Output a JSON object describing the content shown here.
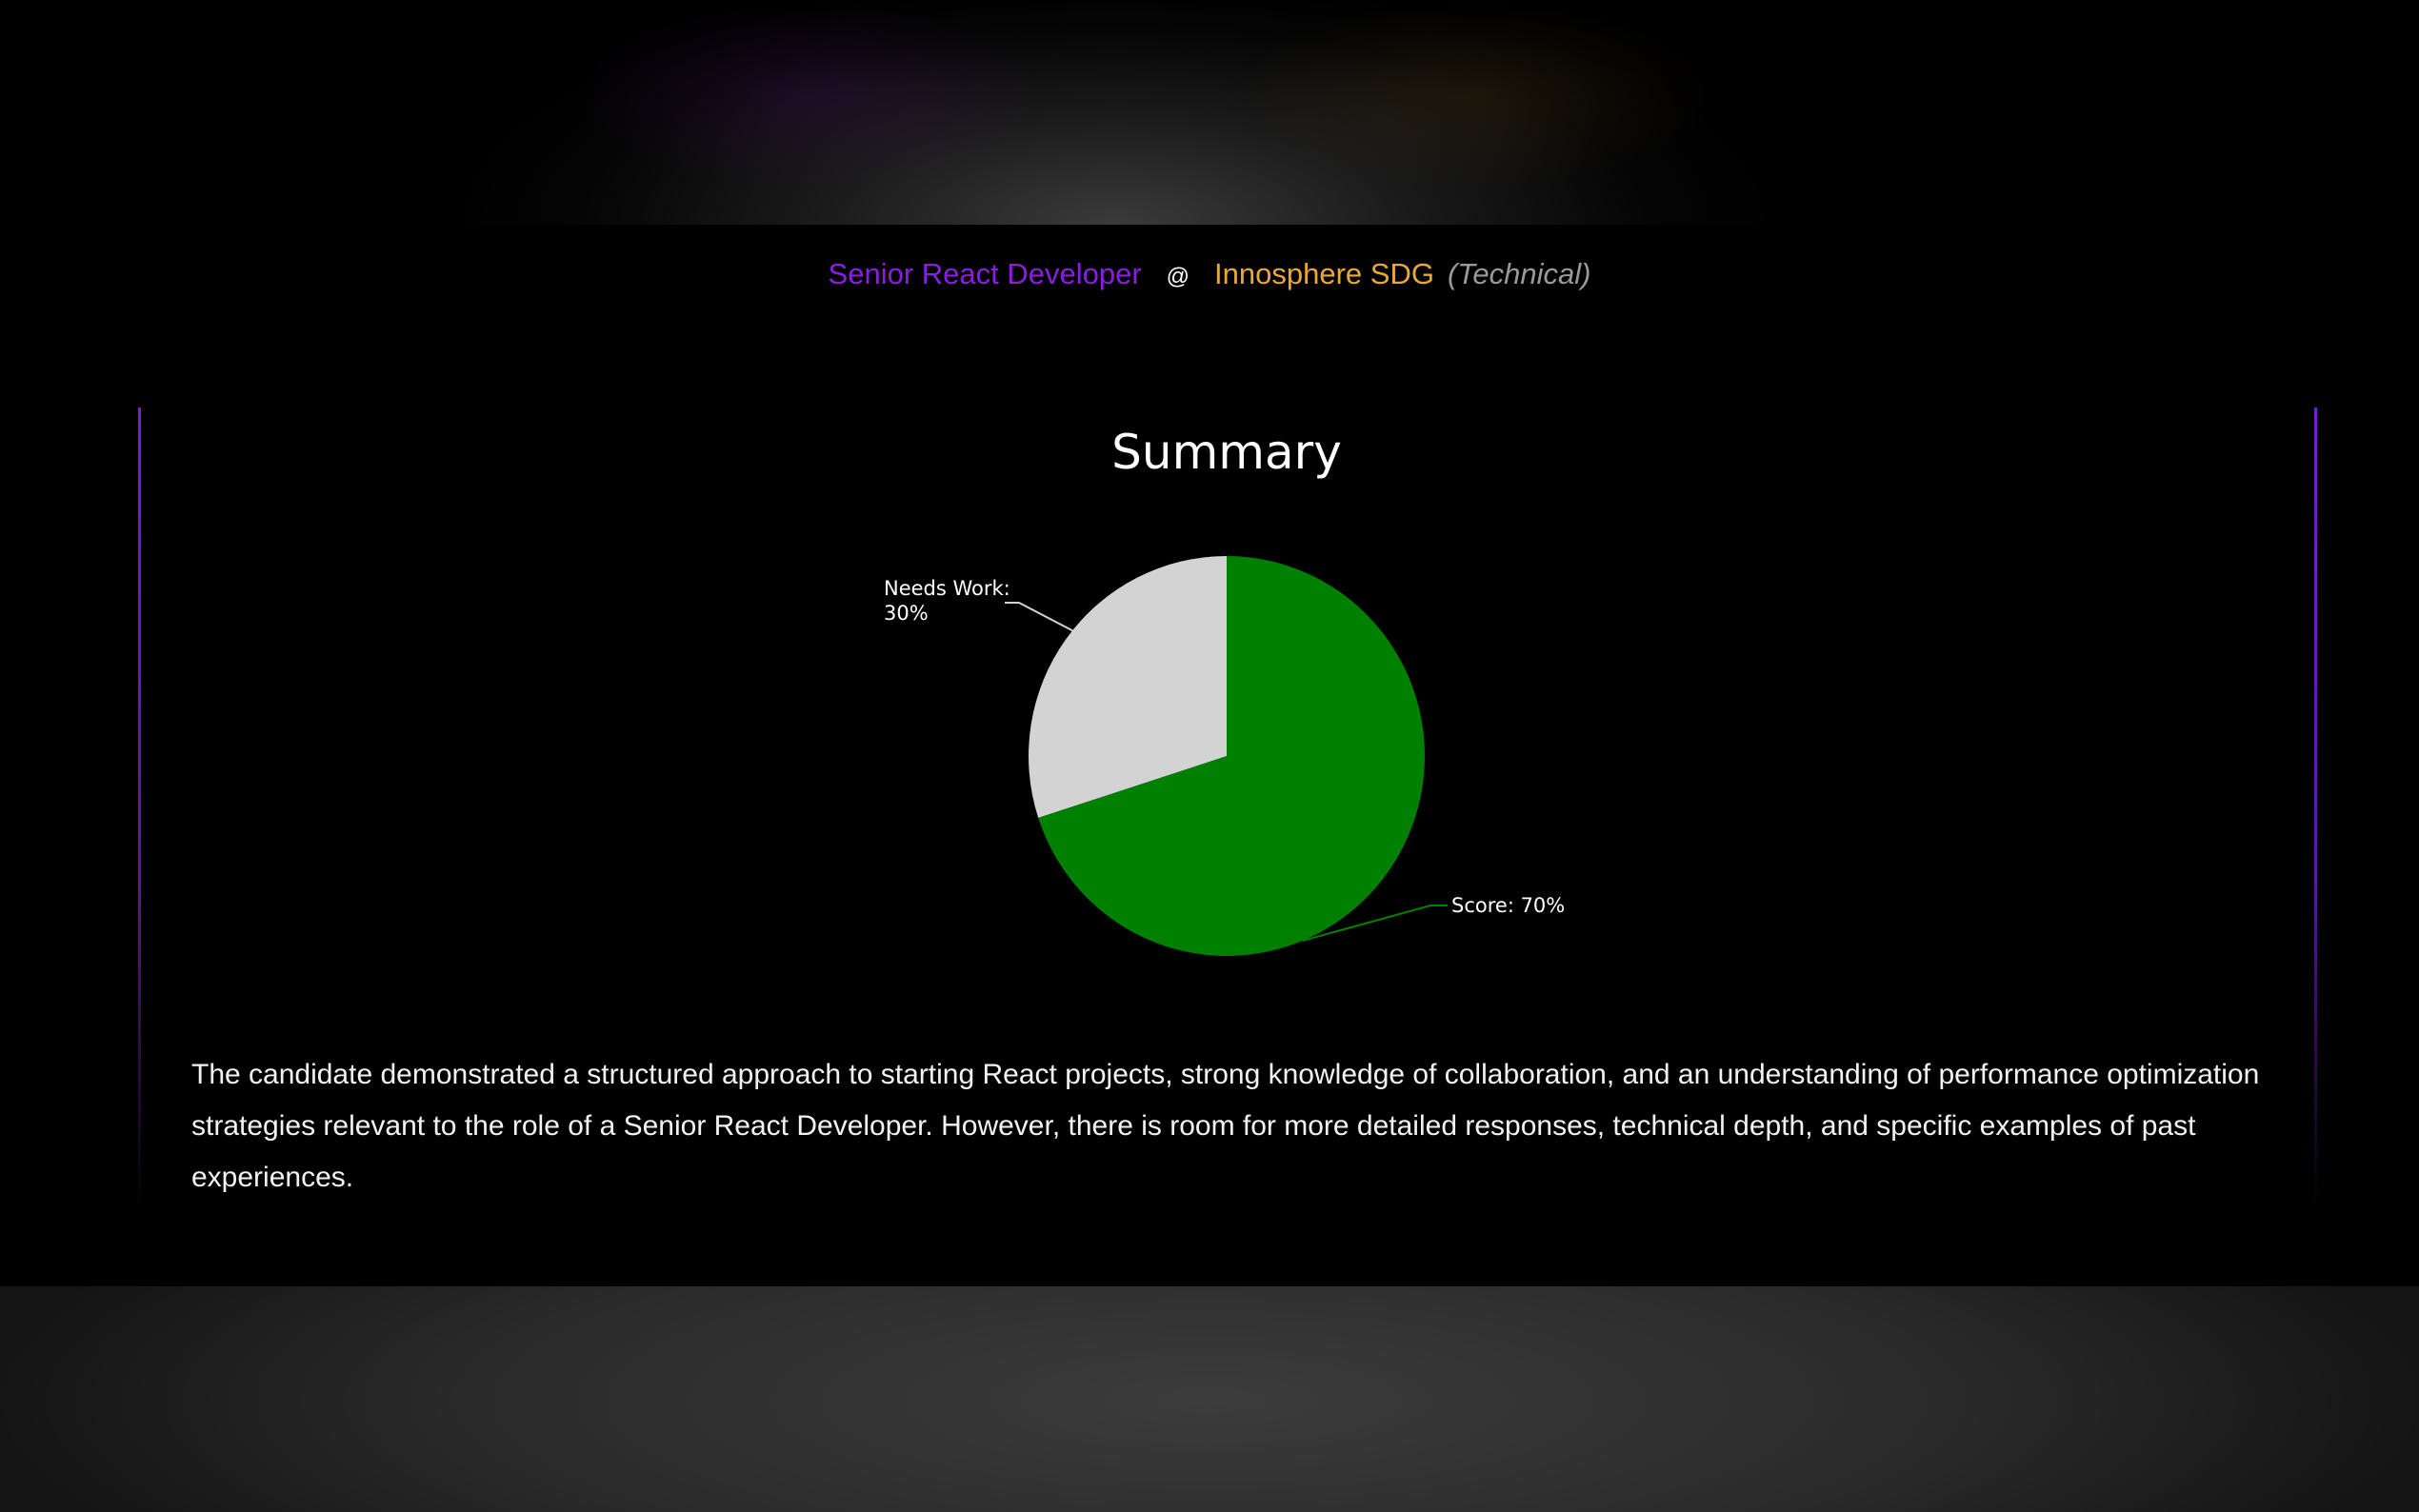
{
  "header": {
    "role": "Senior React Developer",
    "at": "@",
    "company": "Innosphere SDG",
    "interview_type": "(Technical)"
  },
  "colors": {
    "role": "#8a1ee0",
    "company": "#e8a93a",
    "score": "#008000",
    "needs_work": "#d3d3d3"
  },
  "chart_data": {
    "type": "pie",
    "title": "Summary",
    "slices": [
      {
        "label": "Score",
        "value": 70,
        "display": "Score: 70%",
        "color": "#008000"
      },
      {
        "label": "Needs Work",
        "value": 30,
        "display_line1": "Needs Work:",
        "display_line2": "30%",
        "color": "#d3d3d3"
      }
    ],
    "start_angle": "12 o'clock, clockwise"
  },
  "summary_text": "The candidate demonstrated a structured approach to starting React projects, strong knowledge of collaboration, and an understanding of performance optimization strategies relevant to the role of a Senior React Developer. However, there is room for more detailed responses, technical depth, and specific examples of past experiences."
}
